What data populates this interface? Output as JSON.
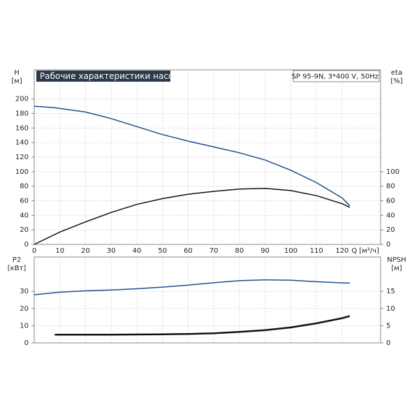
{
  "chart_data": [
    {
      "type": "line",
      "title": "Рабочие характеристики насоса",
      "subtitle": "SP 95-9N, 3*400 V, 50Hz",
      "y_label": "H",
      "y_unit": "[м]",
      "y2_label": "eta",
      "y2_unit": "[%]",
      "x_label": "Q [м³/ч]",
      "xlim": [
        0,
        135
      ],
      "xticks": [
        0,
        10,
        20,
        30,
        40,
        50,
        60,
        70,
        80,
        90,
        100,
        110,
        120
      ],
      "ylim": [
        0,
        240
      ],
      "yticks": [
        0,
        20,
        40,
        60,
        80,
        100,
        120,
        140,
        160,
        180,
        200
      ],
      "y2lim": [
        0,
        240
      ],
      "y2ticks": [
        0,
        20,
        40,
        60,
        80,
        100
      ],
      "grid": true,
      "series": [
        {
          "name": "H",
          "color": "#1f4e8c",
          "x": [
            0,
            8,
            20,
            30,
            40,
            50,
            60,
            70,
            80,
            90,
            100,
            110,
            120,
            123
          ],
          "values": [
            190,
            188,
            182,
            173,
            162,
            151,
            142,
            134,
            126,
            116,
            102,
            85,
            64,
            53
          ]
        },
        {
          "name": "eta",
          "color": "#111111",
          "axis": "y2",
          "x": [
            0,
            10,
            20,
            30,
            40,
            50,
            60,
            70,
            80,
            90,
            100,
            110,
            120,
            123
          ],
          "values": [
            0,
            17,
            31,
            44,
            55,
            63,
            69,
            73,
            76,
            77,
            74,
            67,
            56,
            51
          ]
        }
      ]
    },
    {
      "type": "line",
      "y_label": "P2",
      "y_unit": "[кВт]",
      "y2_label": "NPSH",
      "y2_unit": "[м]",
      "xlim": [
        0,
        135
      ],
      "ylim": [
        0,
        50
      ],
      "yticks": [
        0,
        10,
        20,
        30
      ],
      "y2lim": [
        0,
        25
      ],
      "y2ticks": [
        0,
        5,
        10,
        15
      ],
      "grid": true,
      "series": [
        {
          "name": "P2",
          "color": "#1f4e8c",
          "x": [
            0,
            10,
            20,
            30,
            40,
            50,
            60,
            70,
            80,
            90,
            100,
            110,
            120,
            123
          ],
          "values": [
            28,
            29.5,
            30.3,
            30.8,
            31.5,
            32.5,
            33.6,
            35,
            36.2,
            36.7,
            36.5,
            35.6,
            34.9,
            34.8
          ]
        },
        {
          "name": "NPSH",
          "color": "#111111",
          "axis": "y2",
          "width": 2.5,
          "x": [
            8,
            30,
            50,
            60,
            70,
            80,
            90,
            100,
            110,
            120,
            123
          ],
          "values": [
            2.4,
            2.4,
            2.5,
            2.6,
            2.8,
            3.2,
            3.7,
            4.5,
            5.7,
            7.2,
            7.8
          ]
        }
      ]
    }
  ]
}
